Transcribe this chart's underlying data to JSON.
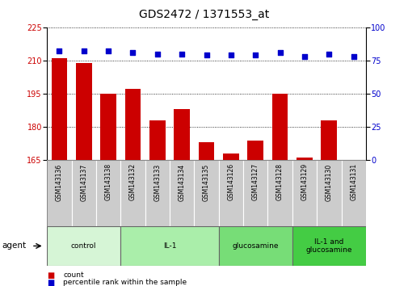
{
  "title": "GDS2472 / 1371553_at",
  "samples": [
    "GSM143136",
    "GSM143137",
    "GSM143138",
    "GSM143132",
    "GSM143133",
    "GSM143134",
    "GSM143135",
    "GSM143126",
    "GSM143127",
    "GSM143128",
    "GSM143129",
    "GSM143130",
    "GSM143131"
  ],
  "counts": [
    211,
    209,
    195,
    197,
    183,
    188,
    173,
    168,
    174,
    195,
    166,
    183,
    165
  ],
  "percentiles": [
    82,
    82,
    82,
    81,
    80,
    80,
    79,
    79,
    79,
    81,
    78,
    80,
    78
  ],
  "groups": [
    {
      "label": "control",
      "start": 0,
      "end": 3,
      "color": "#d6f5d6"
    },
    {
      "label": "IL-1",
      "start": 3,
      "end": 7,
      "color": "#aaeeaa"
    },
    {
      "label": "glucosamine",
      "start": 7,
      "end": 10,
      "color": "#77dd77"
    },
    {
      "label": "IL-1 and\nglucosamine",
      "start": 10,
      "end": 13,
      "color": "#44cc44"
    }
  ],
  "ylim_left": [
    165,
    225
  ],
  "ylim_right": [
    0,
    100
  ],
  "yticks_left": [
    165,
    180,
    195,
    210,
    225
  ],
  "yticks_right": [
    0,
    25,
    50,
    75,
    100
  ],
  "bar_color": "#cc0000",
  "dot_color": "#0000cc",
  "legend_items": [
    {
      "label": "count",
      "color": "#cc0000"
    },
    {
      "label": "percentile rank within the sample",
      "color": "#0000cc"
    }
  ],
  "background_color": "#ffffff",
  "title_fontsize": 10,
  "tick_fontsize": 7,
  "label_fontsize": 7
}
